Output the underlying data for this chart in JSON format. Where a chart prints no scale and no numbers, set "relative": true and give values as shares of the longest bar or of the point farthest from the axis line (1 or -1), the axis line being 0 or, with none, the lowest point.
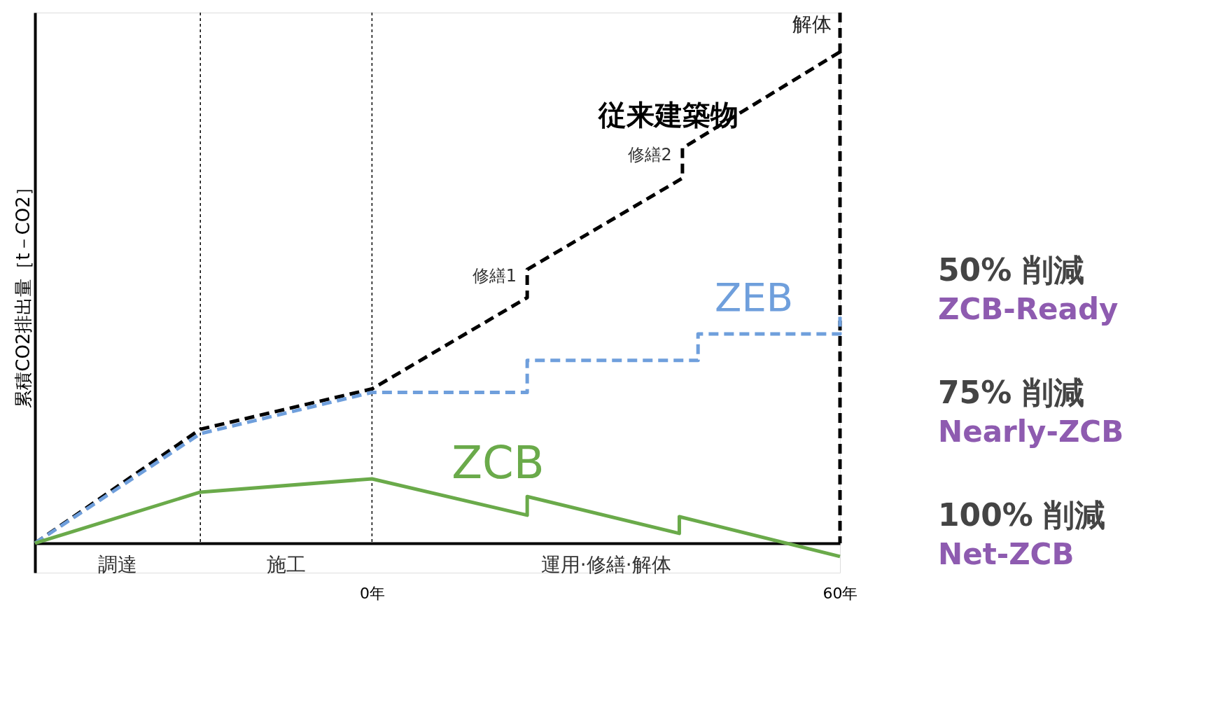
{
  "chart_data": {
    "type": "line",
    "relative": true,
    "ylabel": "累積CO2排出量［t－CO2］",
    "xlim": [
      -43.2,
      60
    ],
    "xticks": [
      {
        "value": 0,
        "label": "0年"
      },
      {
        "value": 60,
        "label": "60年"
      }
    ],
    "series": [
      {
        "name": "従来建築物",
        "color": "#000000",
        "line_style": "dashed",
        "x": [
          -43.2,
          -22.0,
          0,
          19.9,
          19.9,
          39.8,
          39.8,
          60
        ],
        "values": [
          0,
          0.232,
          0.314,
          0.5,
          0.557,
          0.743,
          0.804,
          1
        ]
      },
      {
        "name": "ZEB",
        "color": "#6f9fdc",
        "line_style": "dashed",
        "x": [
          -43.2,
          -22.0,
          0,
          19.9,
          19.9,
          41.8,
          41.8,
          60,
          60
        ],
        "values": [
          0,
          0.223,
          0.307,
          0.307,
          0.372,
          0.372,
          0.426,
          0.426,
          0.466
        ]
      },
      {
        "name": "ZCB",
        "color": "#6aaa4a",
        "line_style": "solid",
        "x": [
          -43.2,
          -22.0,
          0,
          19.9,
          19.9,
          39.4,
          39.4,
          60
        ],
        "values": [
          0,
          0.104,
          0.131,
          0.057,
          0.095,
          0.02,
          0.054,
          -0.027
        ]
      }
    ],
    "ref_lines": [
      {
        "axis": "x",
        "value": -22.0,
        "label": null,
        "line_style": "dotted",
        "color": "#000000"
      },
      {
        "axis": "x",
        "value": 0,
        "label": null,
        "line_style": "dotted",
        "color": "#000000"
      },
      {
        "axis": "x",
        "value": 60,
        "label": "解体",
        "line_style": "dashed",
        "color": "#000000"
      }
    ],
    "annotations": [
      {
        "text": "修繕1",
        "x": 19.9,
        "y": 0.557
      },
      {
        "text": "修繕2",
        "x": 39.8,
        "y": 0.804
      },
      "調達",
      "施工",
      "運用·修繕·解体",
      "50% 削減",
      "ZCB-Ready",
      "75% 削減",
      "Nearly-ZCB",
      "100% 削減",
      "Net-ZCB"
    ],
    "grid": false,
    "tick_labels": "x"
  }
}
